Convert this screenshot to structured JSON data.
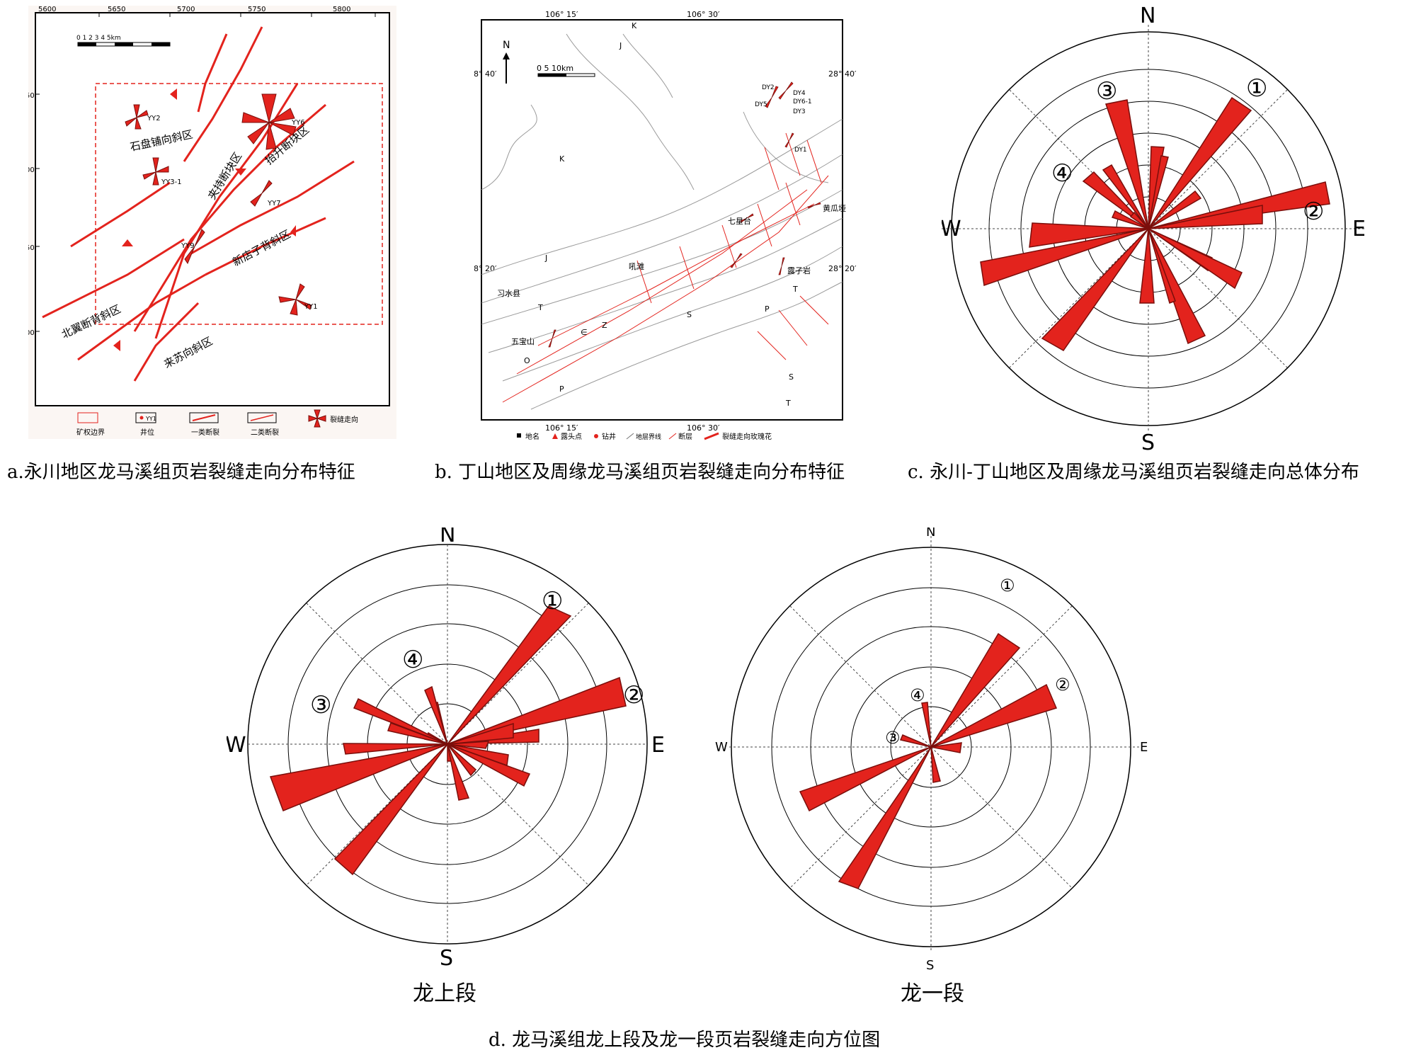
{
  "panel_a": {
    "axis_top": [
      "5600",
      "5650",
      "5700",
      "5750",
      "5800"
    ],
    "axis_left": [
      "50",
      "00",
      "50",
      "00"
    ],
    "scale_label": "0   1   2   3   4   5km",
    "wells": [
      "YY2",
      "YY3-1",
      "YY6",
      "YY7",
      "YY9",
      "YY1"
    ],
    "zones": [
      "石盘铺向斜区",
      "夹持断块区",
      "抬升断块区",
      "新店子背斜区",
      "北翼断背斜区",
      "来苏向斜区"
    ],
    "legend": [
      "矿权边界",
      "井位",
      "一类断裂",
      "二类断裂",
      "裂缝走向"
    ],
    "legend_well": "YY1"
  },
  "panel_b": {
    "lon_ticks": [
      "106° 15′",
      "106° 30′"
    ],
    "lat_ticks": [
      "28° 40′",
      "28° 20′"
    ],
    "north": "N",
    "scale_label": "0    5    10km",
    "wells": [
      "DY2",
      "DY4",
      "DY5",
      "DY6-1",
      "DY3",
      "DY1"
    ],
    "places": [
      "七星台",
      "黄瓜垭",
      "吼滩",
      "露子岩",
      "习水县",
      "五宝山"
    ],
    "strata": [
      "K",
      "J",
      "T",
      "P",
      "S",
      "O",
      "Z",
      "∈"
    ],
    "legend": [
      "地名",
      "露头点",
      "钻井",
      "地层界线",
      "断层",
      "裂缝走向玫瑰花"
    ]
  },
  "panel_c": {
    "directions": {
      "n": "N",
      "s": "S",
      "e": "E",
      "w": "W"
    },
    "markers": [
      "①",
      "②",
      "③",
      "④"
    ]
  },
  "panel_d": {
    "left_title": "龙上段",
    "right_title": "龙一段",
    "directions": {
      "n": "N",
      "s": "S",
      "e": "E",
      "w": "W"
    },
    "markers": [
      "①",
      "②",
      "③",
      "④"
    ]
  },
  "captions": {
    "a": "a.永川地区龙马溪组页岩裂缝走向分布特征",
    "b": "b. 丁山地区及周缘龙马溪组页岩裂缝走向分布特征",
    "c": "c. 永川-丁山地区及周缘龙马溪组页岩裂缝走向总体分布",
    "d": "d. 龙马溪组龙上段及龙一段页岩裂缝走向方位图"
  },
  "colors": {
    "fill": "#e3231d",
    "stroke": "#7a0e0b",
    "ink": "#000000",
    "grid": "#666666"
  }
}
